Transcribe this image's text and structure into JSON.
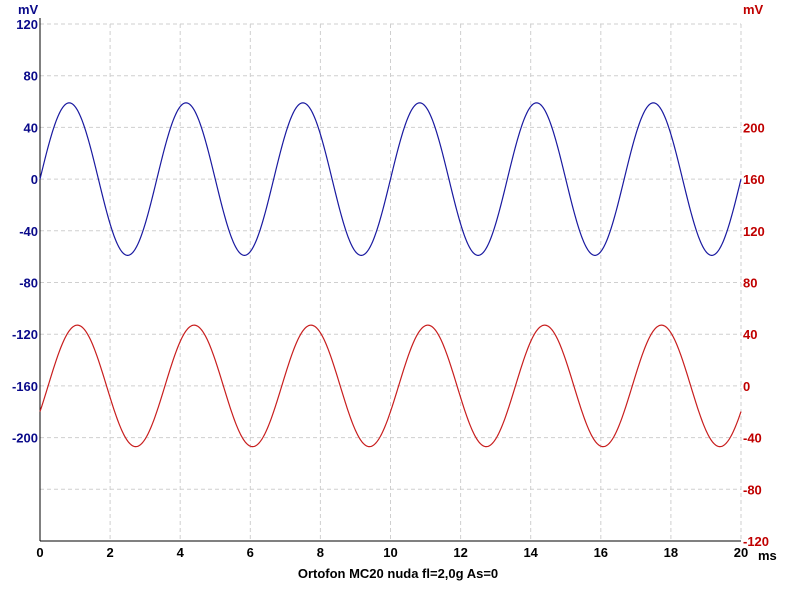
{
  "chart_data": {
    "type": "line",
    "title": "Ortofon MC20 nuda  fl=2,0g  As=0",
    "x": {
      "unit": "ms",
      "range": [
        0,
        20
      ],
      "ticks": [
        "0",
        "2",
        "4",
        "6",
        "8",
        "10",
        "12",
        "14",
        "16",
        "18",
        "20"
      ]
    },
    "y_left": {
      "unit": "mV",
      "range": [
        -280,
        120
      ],
      "ticks": [
        "120",
        "80",
        "40",
        "0",
        "-40",
        "-80",
        "-120",
        "-160",
        "-200"
      ],
      "tick_values": [
        120,
        80,
        40,
        0,
        -40,
        -80,
        -120,
        -160,
        -200
      ]
    },
    "y_right": {
      "unit": "mV",
      "range": [
        -120,
        280
      ],
      "ticks": [
        "200",
        "160",
        "120",
        "80",
        "40",
        "0",
        "-40",
        "-80",
        "-120"
      ],
      "tick_values": [
        200,
        160,
        120,
        80,
        40,
        0,
        -40,
        -80,
        -120
      ]
    },
    "grid": true,
    "series": [
      {
        "axis": "left",
        "color": "#1a1aa0",
        "waveform": "sine",
        "frequency_hz": 300,
        "amplitude_mv": 59,
        "offset_mv": 0,
        "phase_deg": 0
      },
      {
        "axis": "right",
        "color": "#c81e1e",
        "waveform": "sine",
        "frequency_hz": 300,
        "amplitude_mv": 47,
        "offset_mv": 0,
        "phase_deg": -25
      }
    ]
  }
}
